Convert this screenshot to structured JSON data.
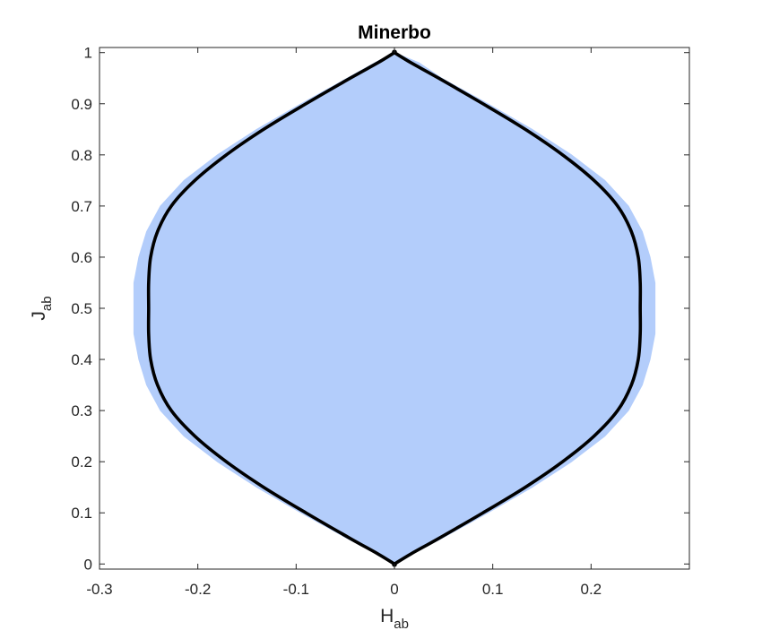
{
  "chart_data": {
    "type": "area",
    "title": "Minerbo",
    "xlabel": {
      "main": "H",
      "sub": "ab"
    },
    "ylabel": {
      "main": "J",
      "sub": "ab"
    },
    "xlim": [
      -0.3,
      0.3
    ],
    "ylim": [
      -0.01,
      1.01
    ],
    "xticks": [
      -0.3,
      -0.2,
      -0.1,
      0,
      0.1,
      0.2
    ],
    "xtick_labels": [
      "-0.3",
      "-0.2",
      "-0.1",
      "0",
      "0.1",
      "0.2"
    ],
    "yticks": [
      0,
      0.1,
      0.2,
      0.3,
      0.4,
      0.5,
      0.6,
      0.7,
      0.8,
      0.9,
      1
    ],
    "ytick_labels": [
      "0",
      "0.1",
      "0.2",
      "0.3",
      "0.4",
      "0.5",
      "0.6",
      "0.7",
      "0.8",
      "0.9",
      "1"
    ],
    "grid": false,
    "colors": {
      "fill": "#b3cdfb",
      "boundary": "#000000",
      "axis": "#262626"
    },
    "series": [
      {
        "kind": "filled-region",
        "y": [
          0,
          0.02,
          0.05,
          0.1,
          0.15,
          0.2,
          0.25,
          0.3,
          0.35,
          0.4,
          0.45,
          0.5,
          0.55,
          0.6,
          0.65,
          0.7,
          0.75,
          0.8,
          0.85,
          0.9,
          0.95,
          0.98,
          1
        ],
        "x_min": [
          0,
          -0.018,
          -0.048,
          -0.095,
          -0.14,
          -0.18,
          -0.214,
          -0.238,
          -0.252,
          -0.26,
          -0.265,
          -0.265,
          -0.265,
          -0.26,
          -0.252,
          -0.238,
          -0.214,
          -0.18,
          -0.14,
          -0.095,
          -0.048,
          -0.02,
          0
        ],
        "x_max": [
          0,
          0.018,
          0.048,
          0.095,
          0.14,
          0.18,
          0.214,
          0.238,
          0.252,
          0.26,
          0.265,
          0.265,
          0.265,
          0.26,
          0.252,
          0.238,
          0.214,
          0.18,
          0.14,
          0.095,
          0.048,
          0.025,
          0
        ]
      },
      {
        "kind": "boundary-curve",
        "y": [
          0,
          0.02,
          0.05,
          0.1,
          0.15,
          0.2,
          0.25,
          0.3,
          0.35,
          0.4,
          0.45,
          0.5,
          0.55,
          0.6,
          0.65,
          0.7,
          0.75,
          0.8,
          0.85,
          0.9,
          0.95,
          0.98,
          1
        ],
        "x_abs": [
          0,
          0.017,
          0.045,
          0.09,
          0.133,
          0.171,
          0.203,
          0.227,
          0.241,
          0.248,
          0.25,
          0.25,
          0.25,
          0.248,
          0.241,
          0.227,
          0.203,
          0.171,
          0.133,
          0.09,
          0.045,
          0.017,
          0
        ]
      }
    ]
  }
}
